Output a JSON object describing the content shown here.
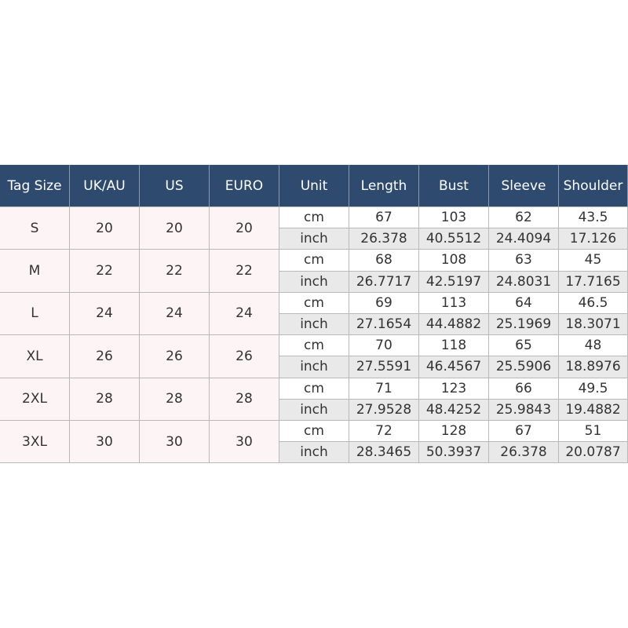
{
  "table": {
    "headers": [
      "Tag Size",
      "UK/AU",
      "US",
      "EURO",
      "Unit",
      "Length",
      "Bust",
      "Sleeve",
      "Shoulder"
    ],
    "sizes": [
      {
        "tag": "S",
        "uk": "20",
        "us": "20",
        "euro": "20",
        "rows": [
          [
            "cm",
            "67",
            "103",
            "62",
            "43.5"
          ],
          [
            "inch",
            "26.378",
            "40.5512",
            "24.4094",
            "17.126"
          ]
        ]
      },
      {
        "tag": "M",
        "uk": "22",
        "us": "22",
        "euro": "22",
        "rows": [
          [
            "cm",
            "68",
            "108",
            "63",
            "45"
          ],
          [
            "inch",
            "26.7717",
            "42.5197",
            "24.8031",
            "17.7165"
          ]
        ]
      },
      {
        "tag": "L",
        "uk": "24",
        "us": "24",
        "euro": "24",
        "rows": [
          [
            "cm",
            "69",
            "113",
            "64",
            "46.5"
          ],
          [
            "inch",
            "27.1654",
            "44.4882",
            "25.1969",
            "18.3071"
          ]
        ]
      },
      {
        "tag": "XL",
        "uk": "26",
        "us": "26",
        "euro": "26",
        "rows": [
          [
            "cm",
            "70",
            "118",
            "65",
            "48"
          ],
          [
            "inch",
            "27.5591",
            "46.4567",
            "25.5906",
            "18.8976"
          ]
        ]
      },
      {
        "tag": "2XL",
        "uk": "28",
        "us": "28",
        "euro": "28",
        "rows": [
          [
            "cm",
            "71",
            "123",
            "66",
            "49.5"
          ],
          [
            "inch",
            "27.9528",
            "48.4252",
            "25.9843",
            "19.4882"
          ]
        ]
      },
      {
        "tag": "3XL",
        "uk": "30",
        "us": "30",
        "euro": "30",
        "rows": [
          [
            "cm",
            "72",
            "128",
            "67",
            "51"
          ],
          [
            "inch",
            "28.3465",
            "50.3937",
            "26.378",
            "20.0787"
          ]
        ]
      }
    ]
  }
}
